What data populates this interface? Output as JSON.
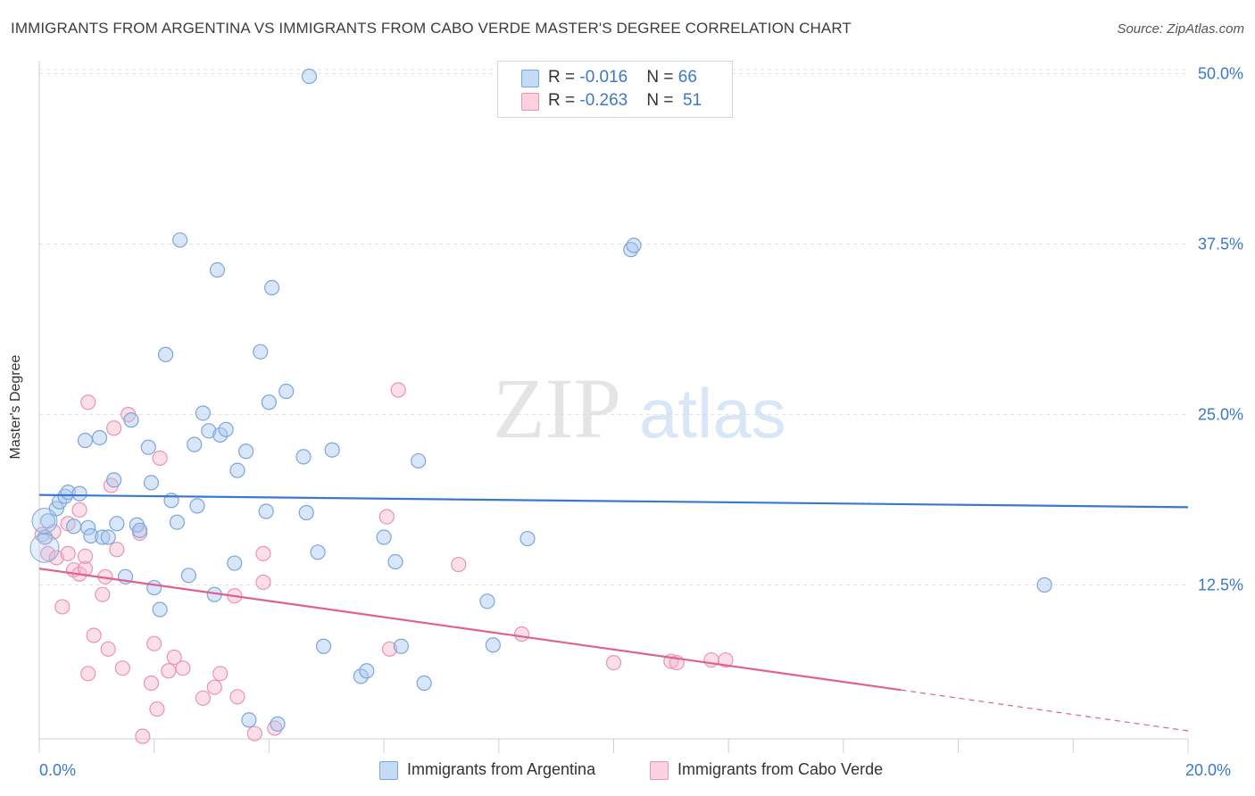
{
  "header": {
    "title": "IMMIGRANTS FROM ARGENTINA VS IMMIGRANTS FROM CABO VERDE MASTER'S DEGREE CORRELATION CHART",
    "source": "Source: ZipAtlas.com"
  },
  "legend": {
    "rows": [
      {
        "r_label": "R = ",
        "r_value": "-0.016",
        "n_label": "N = ",
        "n_value": "66",
        "color": "#a9c8f0"
      },
      {
        "r_label": "R = ",
        "r_value": "-0.263",
        "n_label": "N = ",
        "n_value": "51",
        "color": "#f5b8cb"
      }
    ]
  },
  "bottom_legend": [
    {
      "label": "Immigrants from Argentina",
      "color": "#a9c8f0"
    },
    {
      "label": "Immigrants from Cabo Verde",
      "color": "#f5b8cb"
    }
  ],
  "watermark": {
    "zip": "ZIP",
    "atlas": "atlas"
  },
  "chart_data": {
    "type": "scatter",
    "title": "IMMIGRANTS FROM ARGENTINA VS IMMIGRANTS FROM CABO VERDE MASTER'S DEGREE CORRELATION CHART",
    "xlabel": "",
    "ylabel": "Master's Degree",
    "xlim": [
      0,
      20
    ],
    "ylim": [
      0,
      52
    ],
    "x_tick_labels": [
      "0.0%",
      "20.0%"
    ],
    "y_ticks": [
      12.5,
      25.0,
      37.5,
      50.0
    ],
    "y_tick_labels": [
      "12.5%",
      "25.0%",
      "37.5%",
      "50.0%"
    ],
    "grid": true,
    "colors": {
      "argentina": "#3a78d0",
      "cabo_verde": "#e0608e",
      "tick_text": "#3a78c9"
    },
    "series": [
      {
        "name": "Immigrants from Argentina",
        "color": "#a9c8f0",
        "stroke": "#7aa6dd",
        "trend": {
          "x": [
            0,
            20
          ],
          "y": [
            19.1,
            18.2
          ],
          "style": "solid"
        },
        "points": [
          [
            0.1,
            16.0
          ],
          [
            0.15,
            17.2
          ],
          [
            0.3,
            18.1
          ],
          [
            0.35,
            18.6
          ],
          [
            0.45,
            19.0
          ],
          [
            0.5,
            19.3
          ],
          [
            0.6,
            16.8
          ],
          [
            0.7,
            19.2
          ],
          [
            0.8,
            23.1
          ],
          [
            0.85,
            16.7
          ],
          [
            0.9,
            16.1
          ],
          [
            1.05,
            23.3
          ],
          [
            1.1,
            16.0
          ],
          [
            1.2,
            16.0
          ],
          [
            1.3,
            20.2
          ],
          [
            1.35,
            17.0
          ],
          [
            1.5,
            13.1
          ],
          [
            1.6,
            24.6
          ],
          [
            1.7,
            16.9
          ],
          [
            1.75,
            16.5
          ],
          [
            1.9,
            22.6
          ],
          [
            1.95,
            20.0
          ],
          [
            2.0,
            12.3
          ],
          [
            2.1,
            10.7
          ],
          [
            2.2,
            29.4
          ],
          [
            2.3,
            18.7
          ],
          [
            2.4,
            17.1
          ],
          [
            2.45,
            37.8
          ],
          [
            2.6,
            13.2
          ],
          [
            2.7,
            22.8
          ],
          [
            2.75,
            18.3
          ],
          [
            2.85,
            25.1
          ],
          [
            2.95,
            23.8
          ],
          [
            3.05,
            11.8
          ],
          [
            3.1,
            35.6
          ],
          [
            3.15,
            23.5
          ],
          [
            3.25,
            23.9
          ],
          [
            3.4,
            14.1
          ],
          [
            3.45,
            20.9
          ],
          [
            3.6,
            22.3
          ],
          [
            3.65,
            2.6
          ],
          [
            3.85,
            29.6
          ],
          [
            3.95,
            17.9
          ],
          [
            4.0,
            25.9
          ],
          [
            4.05,
            34.3
          ],
          [
            4.15,
            2.3
          ],
          [
            4.3,
            26.7
          ],
          [
            4.6,
            21.9
          ],
          [
            4.65,
            17.8
          ],
          [
            4.7,
            49.8
          ],
          [
            4.85,
            14.9
          ],
          [
            4.95,
            8.0
          ],
          [
            5.1,
            22.4
          ],
          [
            5.6,
            5.8
          ],
          [
            5.7,
            6.2
          ],
          [
            6.0,
            16.0
          ],
          [
            6.2,
            14.2
          ],
          [
            6.3,
            8.0
          ],
          [
            6.6,
            21.6
          ],
          [
            6.7,
            5.3
          ],
          [
            7.8,
            11.3
          ],
          [
            7.9,
            8.1
          ],
          [
            8.5,
            15.9
          ],
          [
            10.3,
            37.1
          ],
          [
            10.35,
            37.4
          ],
          [
            17.5,
            12.5
          ]
        ]
      },
      {
        "name": "Immigrants from Cabo Verde",
        "color": "#f5b8cb",
        "stroke": "#eb93b0",
        "trend": {
          "x": [
            0,
            15
          ],
          "y": [
            13.7,
            4.8
          ],
          "style": "solid",
          "extension": {
            "x": [
              15,
              20
            ],
            "y": [
              4.8,
              1.8
            ],
            "style": "dashed"
          }
        },
        "points": [
          [
            0.05,
            16.2
          ],
          [
            0.15,
            14.8
          ],
          [
            0.25,
            16.4
          ],
          [
            0.3,
            14.5
          ],
          [
            0.4,
            10.9
          ],
          [
            0.5,
            14.8
          ],
          [
            0.5,
            17.0
          ],
          [
            0.6,
            13.6
          ],
          [
            0.7,
            13.3
          ],
          [
            0.7,
            18.0
          ],
          [
            0.8,
            13.7
          ],
          [
            0.8,
            14.6
          ],
          [
            0.85,
            6.0
          ],
          [
            0.85,
            25.9
          ],
          [
            0.95,
            8.8
          ],
          [
            1.1,
            11.8
          ],
          [
            1.15,
            13.1
          ],
          [
            1.2,
            7.8
          ],
          [
            1.25,
            19.8
          ],
          [
            1.3,
            24.0
          ],
          [
            1.35,
            15.1
          ],
          [
            1.45,
            6.4
          ],
          [
            1.55,
            25.0
          ],
          [
            1.75,
            16.3
          ],
          [
            1.8,
            1.4
          ],
          [
            1.95,
            5.3
          ],
          [
            2.0,
            8.2
          ],
          [
            2.05,
            3.4
          ],
          [
            2.1,
            21.8
          ],
          [
            2.25,
            6.2
          ],
          [
            2.35,
            7.2
          ],
          [
            2.5,
            6.4
          ],
          [
            2.85,
            4.2
          ],
          [
            3.05,
            5.0
          ],
          [
            3.15,
            6.0
          ],
          [
            3.4,
            11.7
          ],
          [
            3.45,
            4.3
          ],
          [
            3.75,
            1.6
          ],
          [
            3.9,
            14.8
          ],
          [
            3.9,
            12.7
          ],
          [
            4.1,
            2.0
          ],
          [
            6.05,
            17.5
          ],
          [
            6.1,
            7.8
          ],
          [
            6.25,
            26.8
          ],
          [
            7.3,
            14.0
          ],
          [
            8.4,
            8.9
          ],
          [
            10.0,
            6.8
          ],
          [
            11.0,
            6.9
          ],
          [
            11.1,
            6.8
          ],
          [
            11.7,
            7.0
          ],
          [
            11.95,
            7.0
          ]
        ]
      }
    ]
  }
}
